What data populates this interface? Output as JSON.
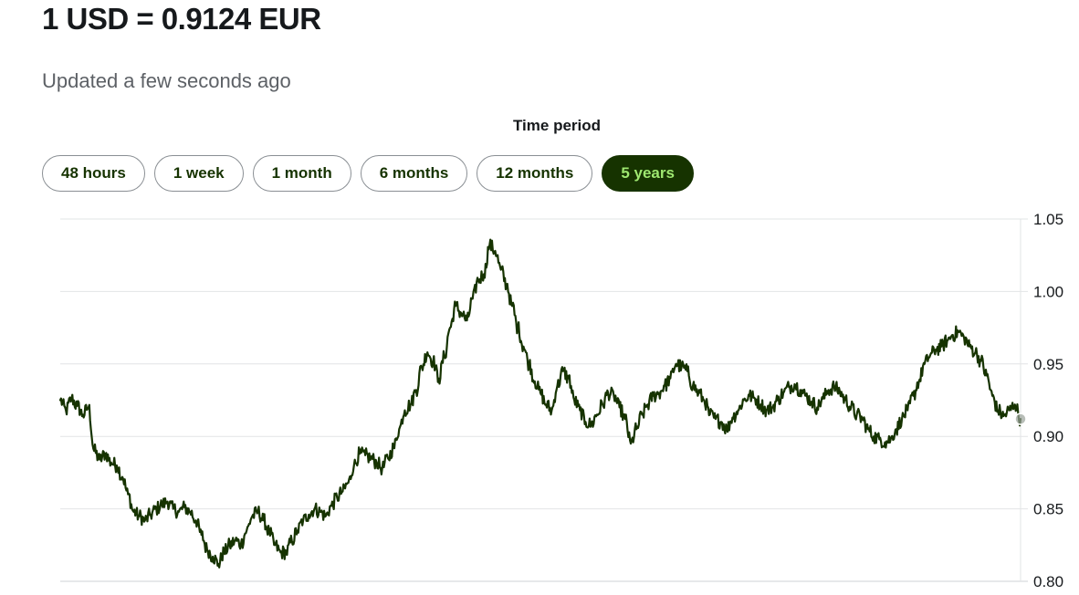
{
  "header": {
    "rate_title": "1 USD = 0.9124 EUR",
    "updated_text": "Updated a few seconds ago"
  },
  "period": {
    "label": "Time period",
    "tabs": [
      {
        "label": "48 hours",
        "active": false
      },
      {
        "label": "1 week",
        "active": false
      },
      {
        "label": "1 month",
        "active": false
      },
      {
        "label": "6 months",
        "active": false
      },
      {
        "label": "12 months",
        "active": false
      },
      {
        "label": "5 years",
        "active": true
      }
    ]
  },
  "colors": {
    "line": "#163300",
    "active_tab_bg": "#163300",
    "active_tab_text": "#9fe870",
    "grid": "#e2e4e6"
  },
  "chart_data": {
    "type": "line",
    "title": "",
    "xlabel": "",
    "ylabel": "",
    "y_axis_position": "right",
    "grid": true,
    "legend": "none",
    "ylim": [
      0.8,
      1.05
    ],
    "yticks": [
      "1.05",
      "1.00",
      "0.95",
      "0.90",
      "0.85",
      "0.80"
    ],
    "series": [
      {
        "values": [
          0.925,
          0.918,
          0.926,
          0.921,
          0.915,
          0.92,
          0.89,
          0.884,
          0.888,
          0.882,
          0.88,
          0.872,
          0.86,
          0.848,
          0.845,
          0.842,
          0.846,
          0.85,
          0.853,
          0.855,
          0.85,
          0.848,
          0.851,
          0.848,
          0.842,
          0.832,
          0.822,
          0.817,
          0.812,
          0.82,
          0.825,
          0.828,
          0.826,
          0.835,
          0.845,
          0.848,
          0.842,
          0.834,
          0.825,
          0.82,
          0.82,
          0.828,
          0.835,
          0.842,
          0.846,
          0.85,
          0.848,
          0.845,
          0.852,
          0.858,
          0.862,
          0.868,
          0.88,
          0.888,
          0.887,
          0.885,
          0.882,
          0.878,
          0.885,
          0.892,
          0.905,
          0.918,
          0.922,
          0.932,
          0.948,
          0.958,
          0.952,
          0.94,
          0.955,
          0.975,
          0.99,
          0.985,
          0.98,
          0.995,
          1.008,
          1.012,
          1.032,
          1.028,
          1.015,
          1.005,
          0.99,
          0.975,
          0.962,
          0.95,
          0.938,
          0.93,
          0.922,
          0.918,
          0.935,
          0.945,
          0.94,
          0.925,
          0.918,
          0.91,
          0.908,
          0.915,
          0.922,
          0.93,
          0.928,
          0.92,
          0.912,
          0.895,
          0.905,
          0.915,
          0.922,
          0.928,
          0.93,
          0.935,
          0.94,
          0.95,
          0.948,
          0.945,
          0.935,
          0.93,
          0.925,
          0.915,
          0.912,
          0.91,
          0.905,
          0.913,
          0.918,
          0.925,
          0.928,
          0.926,
          0.922,
          0.918,
          0.92,
          0.925,
          0.93,
          0.934,
          0.936,
          0.932,
          0.928,
          0.924,
          0.92,
          0.926,
          0.932,
          0.934,
          0.931,
          0.925,
          0.92,
          0.915,
          0.912,
          0.905,
          0.9,
          0.898,
          0.896,
          0.898,
          0.905,
          0.912,
          0.918,
          0.928,
          0.938,
          0.95,
          0.956,
          0.96,
          0.962,
          0.966,
          0.97,
          0.972,
          0.968,
          0.962,
          0.958,
          0.952,
          0.942,
          0.928,
          0.918,
          0.914,
          0.918,
          0.922,
          0.912
        ]
      }
    ],
    "current_value": 0.9124
  }
}
